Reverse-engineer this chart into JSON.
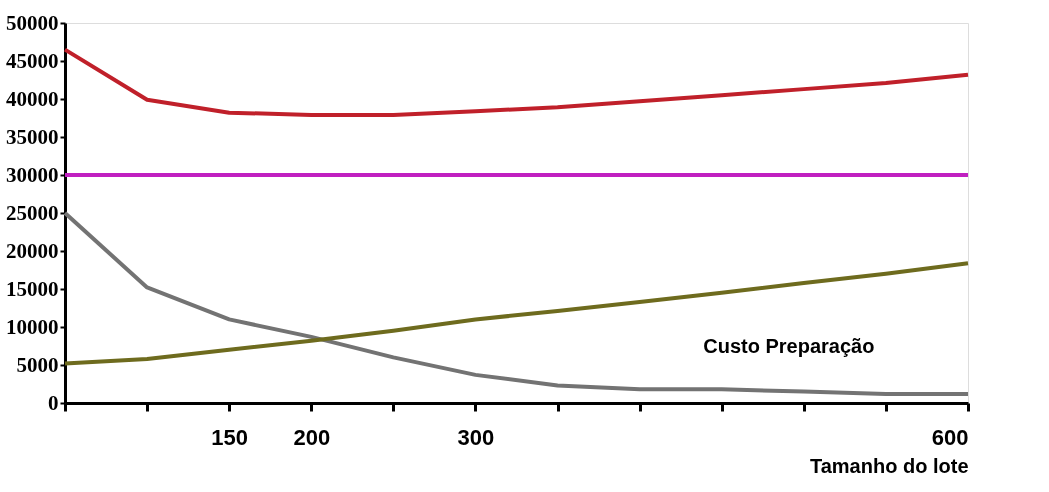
{
  "chart_data": {
    "type": "line",
    "xlabel": "Tamanho do lote",
    "x": [
      50,
      100,
      150,
      200,
      250,
      300,
      350,
      400,
      450,
      500,
      550,
      600
    ],
    "xlim": [
      50,
      600
    ],
    "xticks": [
      {
        "value": 50,
        "label": null
      },
      {
        "value": 100,
        "label": null
      },
      150,
      200,
      {
        "value": 250,
        "label": null
      },
      300,
      {
        "value": 350,
        "label": null
      },
      {
        "value": 400,
        "label": null
      },
      {
        "value": 450,
        "label": null
      },
      {
        "value": 500,
        "label": null
      },
      {
        "value": 550,
        "label": null
      },
      600
    ],
    "ylim": [
      0,
      50000
    ],
    "yticks": [
      0,
      5000,
      10000,
      15000,
      20000,
      25000,
      30000,
      35000,
      40000,
      45000,
      50000
    ],
    "grid": false,
    "legend": false,
    "marker": "none",
    "line_style": "solid",
    "series": [
      {
        "color": "#c0202a",
        "values": [
          46500,
          39900,
          38200,
          37900,
          37900,
          38400,
          38900,
          39700,
          40500,
          41300,
          42100,
          43200
        ]
      },
      {
        "color": "#c020c0",
        "values": [
          30000,
          30000,
          30000,
          30000,
          30000,
          30000,
          30000,
          30000,
          30000,
          30000,
          30000,
          30000
        ]
      },
      {
        "name": "Custo Preparação",
        "color": "#737373",
        "values": [
          25000,
          15200,
          11000,
          8700,
          6000,
          3700,
          2300,
          1800,
          1800,
          1500,
          1200,
          1200
        ]
      },
      {
        "color": "#6e6b1e",
        "values": [
          5200,
          5800,
          7000,
          8200,
          9500,
          11000,
          12100,
          13300,
          14500,
          15800,
          17000,
          18400
        ]
      }
    ]
  }
}
